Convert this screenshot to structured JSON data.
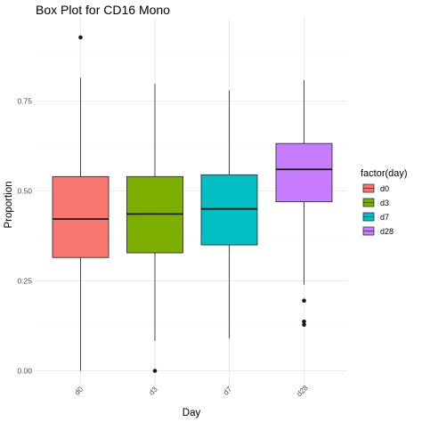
{
  "chart_data": {
    "type": "box",
    "title": "Box Plot for CD16 Mono",
    "xlabel": "Day",
    "ylabel": "Proportion",
    "ylim": [
      -0.01,
      0.965
    ],
    "yticks": [
      0.0,
      0.25,
      0.5,
      0.75
    ],
    "ytick_labels": [
      "0.00",
      "0.25",
      "0.50",
      "0.75"
    ],
    "grid": true,
    "legend": {
      "title": "factor(day)",
      "placement": "right",
      "entries": [
        "d0",
        "d3",
        "d7",
        "d28"
      ]
    },
    "categories": [
      "d0",
      "d3",
      "d7",
      "d28"
    ],
    "colors": [
      "#F8766D",
      "#7CAE00",
      "#00BFC4",
      "#C77CFF"
    ],
    "boxes": [
      {
        "name": "d0",
        "whisker_low": 0.0,
        "q1": 0.315,
        "median": 0.422,
        "q3": 0.54,
        "whisker_high": 0.815,
        "outliers": [
          0.927
        ]
      },
      {
        "name": "d3",
        "whisker_low": 0.083,
        "q1": 0.328,
        "median": 0.436,
        "q3": 0.54,
        "whisker_high": 0.798,
        "outliers": [
          0.0
        ]
      },
      {
        "name": "d7",
        "whisker_low": 0.09,
        "q1": 0.35,
        "median": 0.45,
        "q3": 0.545,
        "whisker_high": 0.78,
        "outliers": []
      },
      {
        "name": "d28",
        "whisker_low": 0.24,
        "q1": 0.47,
        "median": 0.56,
        "q3": 0.632,
        "whisker_high": 0.808,
        "outliers": [
          0.195,
          0.137,
          0.128
        ]
      }
    ]
  }
}
